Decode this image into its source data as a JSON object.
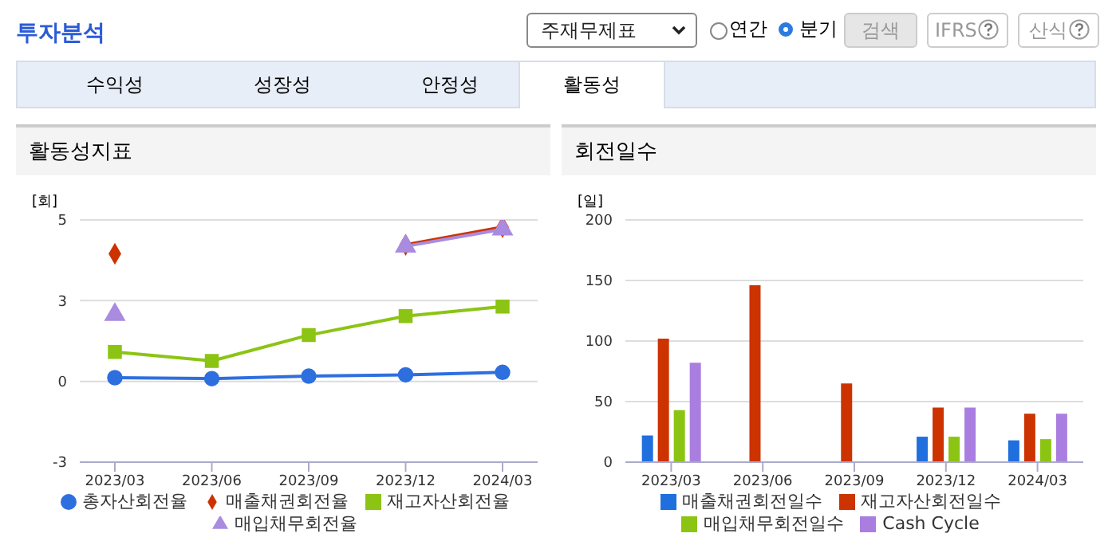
{
  "chart_data": [
    {
      "type": "line",
      "title": "활동성지표",
      "ylabel": "[회]",
      "annotations": [
        "투자분석",
        "주재무제표",
        "연간",
        "분기",
        "검색",
        "IFRS",
        "산식",
        "수익성",
        "성장성",
        "안정성",
        "활동성"
      ],
      "categories": [
        "2023/03",
        "2023/06",
        "2023/09",
        "2023/12",
        "2024/03"
      ],
      "series": [
        {
          "name": "총자산회전율",
          "color": "#2e6fdf",
          "marker": "circle",
          "values": [
            0.12,
            0.09,
            0.17,
            0.21,
            0.29
          ]
        },
        {
          "name": "매출채권회전율",
          "color": "#cc3300",
          "marker": "diamond",
          "values": [
            4.11,
            null,
            null,
            4.4,
            4.97
          ]
        },
        {
          "name": "재고자산회전율",
          "color": "#8cc414",
          "marker": "square",
          "values": [
            0.95,
            0.66,
            1.49,
            2.1,
            2.41
          ]
        },
        {
          "name": "매입채무회전율",
          "color": "#a98be0",
          "marker": "triangle",
          "values": [
            2.15,
            null,
            null,
            4.35,
            4.9
          ]
        }
      ],
      "ylim": [
        -2.6,
        5.2
      ],
      "yticks": [
        {
          "value": -2.6,
          "label": "-3"
        },
        0,
        {
          "value": 2.6,
          "label": "3"
        },
        {
          "value": 5.2,
          "label": "5"
        }
      ],
      "grid": "y",
      "legend": "bottom"
    },
    {
      "type": "bar",
      "title": "회전일수",
      "ylabel": "[일]",
      "categories": [
        "2023/03",
        "2023/06",
        "2023/09",
        "2023/12",
        "2024/03"
      ],
      "series": [
        {
          "name": "매출채권회전일수",
          "color": "#1f6fde",
          "values": [
            22,
            null,
            null,
            21,
            18
          ]
        },
        {
          "name": "재고자산회전일수",
          "color": "#cc3300",
          "values": [
            102,
            146,
            65,
            45,
            40
          ]
        },
        {
          "name": "매입채무회전일수",
          "color": "#8cc414",
          "values": [
            43,
            null,
            null,
            21,
            19
          ]
        },
        {
          "name": "Cash Cycle",
          "color": "#a97ee0",
          "values": [
            82,
            null,
            null,
            45,
            40
          ]
        }
      ],
      "ylim": [
        0,
        200
      ],
      "yticks": [
        0,
        50,
        100,
        150,
        200
      ],
      "grid": "y",
      "legend": "bottom"
    }
  ]
}
